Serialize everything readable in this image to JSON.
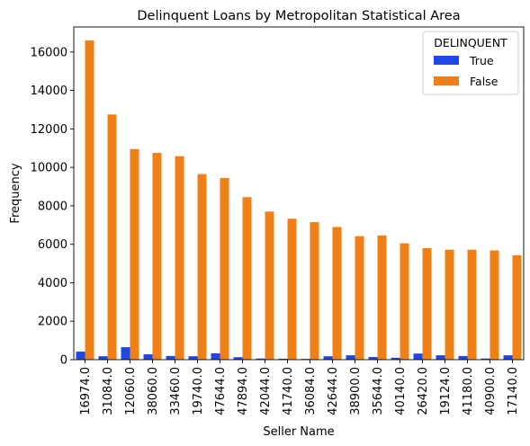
{
  "chart_data": {
    "type": "bar",
    "title": "Delinquent Loans by Metropolitan Statistical Area",
    "xlabel": "Seller Name",
    "ylabel": "Frequency",
    "ylim": [
      0,
      17300
    ],
    "yticks": [
      0,
      2000,
      4000,
      6000,
      8000,
      10000,
      12000,
      14000,
      16000
    ],
    "categories": [
      "16974.0",
      "31084.0",
      "12060.0",
      "38060.0",
      "33460.0",
      "19740.0",
      "47644.0",
      "47894.0",
      "42044.0",
      "41740.0",
      "36084.0",
      "42644.0",
      "38900.0",
      "35644.0",
      "40140.0",
      "26420.0",
      "19124.0",
      "41180.0",
      "40900.0",
      "17140.0"
    ],
    "legend": {
      "title": "DELINQUENT",
      "position": "top-right"
    },
    "series": [
      {
        "name": "True",
        "color": "#1f48e8",
        "values": [
          420,
          180,
          650,
          280,
          190,
          180,
          330,
          130,
          60,
          50,
          40,
          180,
          230,
          140,
          100,
          320,
          230,
          190,
          60,
          230
        ]
      },
      {
        "name": "False",
        "color": "#f07f16",
        "values": [
          16600,
          12750,
          10950,
          10750,
          10580,
          9650,
          9450,
          8450,
          7700,
          7330,
          7150,
          6900,
          6420,
          6460,
          6050,
          5800,
          5720,
          5720,
          5680,
          5430
        ]
      }
    ],
    "grid": false
  }
}
